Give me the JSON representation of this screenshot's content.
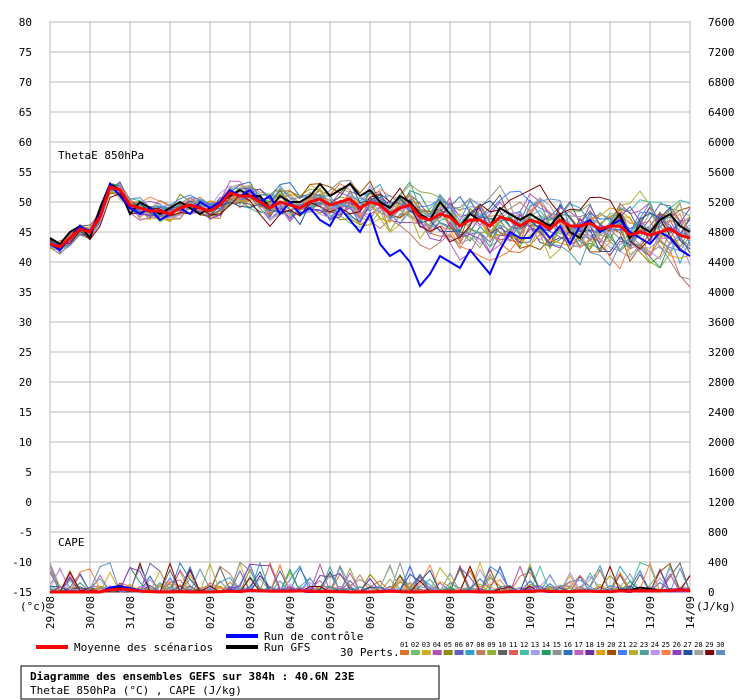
{
  "chart_data": {
    "type": "line",
    "title": "Diagramme des ensembles GEFS sur 384h : 40.6N 23E",
    "subtitle": "ThetaE 850hPa (°C) , CAPE (J/kg)",
    "panel_labels": [
      "ThetaE 850hPa",
      "CAPE"
    ],
    "ylabel_left": "(°c)",
    "ylabel_right": "(J/kg)",
    "ylim_left": [
      -15,
      80
    ],
    "yticks_left": [
      80,
      75,
      70,
      65,
      60,
      55,
      50,
      45,
      40,
      35,
      30,
      25,
      20,
      15,
      10,
      5,
      0,
      -5,
      -10,
      -15
    ],
    "ylim_right": [
      0,
      7600
    ],
    "yticks_right": [
      7600,
      7200,
      6800,
      6400,
      6000,
      5600,
      5200,
      4800,
      4400,
      4000,
      3600,
      3200,
      2800,
      2400,
      2000,
      1600,
      1200,
      800,
      400,
      0
    ],
    "x_dates": [
      "29/08",
      "30/08",
      "31/08",
      "01/09",
      "02/09",
      "03/09",
      "04/09",
      "05/09",
      "06/09",
      "07/09",
      "08/09",
      "09/09",
      "10/09",
      "11/09",
      "12/09",
      "13/09",
      "14/09"
    ],
    "grid": true,
    "legend": {
      "mean": "Moyenne des scénarios",
      "control": "Run de contrôle",
      "gfs": "Run GFS",
      "perts_label": "30 Perts.",
      "pert_codes": [
        "01",
        "02",
        "03",
        "04",
        "05",
        "06",
        "07",
        "08",
        "09",
        "10",
        "11",
        "12",
        "13",
        "14",
        "15",
        "16",
        "17",
        "18",
        "19",
        "20",
        "21",
        "22",
        "23",
        "24",
        "25",
        "26",
        "27",
        "28",
        "29",
        "30"
      ]
    },
    "colors": {
      "mean": "#ff0000",
      "control": "#0000ff",
      "gfs": "#000000",
      "perts": [
        "#e07030",
        "#70c070",
        "#d0b020",
        "#b050b0",
        "#8c8c00",
        "#6060c0",
        "#30a0d0",
        "#c08060",
        "#90b040",
        "#606060",
        "#e06060",
        "#40c0a0",
        "#a0a0f0",
        "#20a060",
        "#909090",
        "#3070c0",
        "#c060c0",
        "#7030a0",
        "#e0a000",
        "#a05000",
        "#4080ff",
        "#b0b030",
        "#50a0a0",
        "#c090f0",
        "#ff8040",
        "#9040c0",
        "#2050a0",
        "#a0a0a0",
        "#800000",
        "#6090c0"
      ]
    },
    "series": [
      {
        "name": "Moyenne des scénarios",
        "role": "mean",
        "x": [
          0,
          0.25,
          0.5,
          0.75,
          1,
          1.25,
          1.5,
          1.75,
          2,
          2.25,
          2.5,
          2.75,
          3,
          3.25,
          3.5,
          3.75,
          4,
          4.25,
          4.5,
          4.75,
          5,
          5.25,
          5.5,
          5.75,
          6,
          6.25,
          6.5,
          6.75,
          7,
          7.25,
          7.5,
          7.75,
          8,
          8.25,
          8.5,
          8.75,
          9,
          9.25,
          9.5,
          9.75,
          10,
          10.25,
          10.5,
          10.75,
          11,
          11.25,
          11.5,
          11.75,
          12,
          12.25,
          12.5,
          12.75,
          13,
          13.25,
          13.5,
          13.75,
          14,
          14.25,
          14.5,
          14.75,
          15,
          15.25,
          15.5,
          15.75,
          16
        ],
        "theta_e": [
          43,
          42.5,
          44,
          45.5,
          45,
          47.5,
          52.5,
          52,
          49.5,
          49,
          48.5,
          48.5,
          48,
          49,
          49.5,
          49,
          48.5,
          49.5,
          51.5,
          51,
          51,
          50,
          49,
          50,
          49.5,
          49,
          50,
          50.5,
          49.5,
          50,
          50.5,
          49,
          50,
          49.5,
          48,
          49,
          49.5,
          47.5,
          47,
          48,
          47.5,
          46,
          47,
          47,
          46,
          47.5,
          47,
          46,
          47,
          46.5,
          45.5,
          47,
          46,
          46,
          46.5,
          45.5,
          46,
          46,
          44.5,
          45,
          44.5,
          45,
          45.5,
          44.5,
          44
        ],
        "cape": [
          0,
          0,
          0,
          0,
          0,
          0,
          30,
          40,
          30,
          10,
          5,
          0,
          0,
          5,
          0,
          0,
          0,
          5,
          10,
          5,
          20,
          15,
          10,
          10,
          10,
          15,
          10,
          5,
          5,
          5,
          0,
          0,
          0,
          5,
          10,
          5,
          0,
          0,
          5,
          5,
          0,
          5,
          5,
          0,
          0,
          0,
          5,
          5,
          5,
          15,
          10,
          5,
          5,
          10,
          10,
          5,
          5,
          15,
          10,
          20,
          15,
          15,
          20,
          30,
          20
        ]
      },
      {
        "name": "Run de contrôle",
        "role": "control",
        "x": [
          0,
          0.25,
          0.5,
          0.75,
          1,
          1.25,
          1.5,
          1.75,
          2,
          2.25,
          2.5,
          2.75,
          3,
          3.25,
          3.5,
          3.75,
          4,
          4.25,
          4.5,
          4.75,
          5,
          5.25,
          5.5,
          5.75,
          6,
          6.25,
          6.5,
          6.75,
          7,
          7.25,
          7.5,
          7.75,
          8,
          8.25,
          8.5,
          8.75,
          9,
          9.25,
          9.5,
          9.75,
          10,
          10.25,
          10.5,
          10.75,
          11,
          11.25,
          11.5,
          11.75,
          12,
          12.25,
          12.5,
          12.75,
          13,
          13.25,
          13.5,
          13.75,
          14,
          14.25,
          14.5,
          14.75,
          15,
          15.25,
          15.5,
          15.75,
          16
        ],
        "theta_e": [
          43,
          42,
          44,
          46,
          45,
          48,
          53,
          51,
          49,
          48,
          49,
          47,
          48,
          49,
          48,
          50,
          49,
          50,
          52,
          51,
          52,
          50,
          51,
          48,
          50,
          48,
          49,
          47,
          46,
          49,
          47,
          45,
          48,
          43,
          41,
          42,
          40,
          36,
          38,
          41,
          40,
          39,
          42,
          40,
          38,
          42,
          45,
          44,
          44,
          46,
          44,
          46,
          43,
          46,
          47,
          45,
          46,
          47,
          45,
          44,
          43,
          45,
          44,
          42,
          41
        ],
        "cape": [
          0,
          0,
          0,
          0,
          0,
          0,
          60,
          80,
          50,
          20,
          0,
          0,
          0,
          10,
          0,
          0,
          0,
          0,
          20,
          10,
          30,
          20,
          10,
          20,
          20,
          10,
          0,
          0,
          0,
          0,
          0,
          0,
          0,
          0,
          10,
          0,
          0,
          0,
          0,
          0,
          0,
          0,
          0,
          0,
          0,
          0,
          0,
          0,
          0,
          10,
          0,
          0,
          0,
          20,
          10,
          0,
          0,
          10,
          0,
          20,
          10,
          20,
          30,
          40,
          30
        ]
      },
      {
        "name": "Run GFS",
        "role": "gfs",
        "x": [
          0,
          0.25,
          0.5,
          0.75,
          1,
          1.25,
          1.5,
          1.75,
          2,
          2.25,
          2.5,
          2.75,
          3,
          3.25,
          3.5,
          3.75,
          4,
          4.25,
          4.5,
          4.75,
          5,
          5.25,
          5.5,
          5.75,
          6,
          6.25,
          6.5,
          6.75,
          7,
          7.25,
          7.5,
          7.75,
          8,
          8.25,
          8.5,
          8.75,
          9,
          9.25,
          9.5,
          9.75,
          10,
          10.25,
          10.5,
          10.75,
          11,
          11.25,
          11.5,
          11.75,
          12,
          12.25,
          12.5,
          12.75,
          13,
          13.25,
          13.5,
          13.75,
          14,
          14.25,
          14.5,
          14.75,
          15,
          15.25,
          15.5,
          15.75,
          16
        ],
        "theta_e": [
          44,
          43,
          45,
          46,
          44,
          49,
          53,
          52,
          48,
          50,
          49,
          48,
          49,
          50,
          49,
          48,
          49,
          50,
          51,
          52,
          51,
          51,
          49,
          51,
          50,
          50,
          51,
          53,
          51,
          52,
          53,
          51,
          52,
          50,
          49,
          51,
          50,
          48,
          47,
          50,
          48,
          46,
          48,
          47,
          46,
          49,
          48,
          47,
          48,
          47,
          46,
          48,
          45,
          44,
          47,
          45,
          46,
          48,
          44,
          46,
          45,
          47,
          48,
          46,
          45
        ],
        "cape": [
          0,
          0,
          0,
          0,
          0,
          0,
          40,
          60,
          30,
          20,
          0,
          0,
          0,
          10,
          0,
          0,
          0,
          0,
          10,
          10,
          20,
          10,
          10,
          10,
          20,
          10,
          0,
          0,
          10,
          10,
          0,
          0,
          0,
          0,
          20,
          10,
          0,
          0,
          10,
          0,
          0,
          0,
          0,
          0,
          0,
          0,
          0,
          10,
          0,
          10,
          10,
          0,
          0,
          20,
          10,
          0,
          0,
          30,
          20,
          60,
          40,
          20,
          10,
          30,
          20
        ]
      }
    ]
  }
}
